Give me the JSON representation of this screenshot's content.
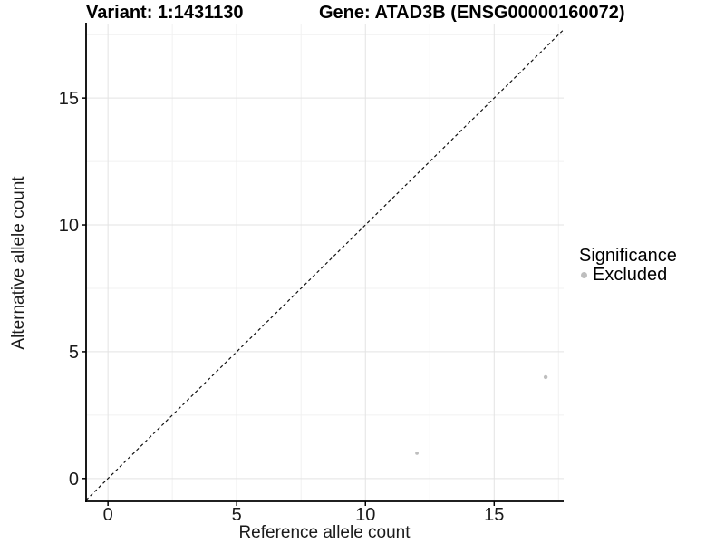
{
  "titles": {
    "variant": "Variant: 1:1431130",
    "gene": "Gene: ATAD3B (ENSG00000160072)"
  },
  "chart_data": {
    "type": "scatter",
    "title_left": "Variant: 1:1431130",
    "title_right": "Gene: ATAD3B (ENSG00000160072)",
    "xlabel": "Reference allele count",
    "ylabel": "Alternative allele count",
    "xlim": [
      -0.85,
      17.7
    ],
    "ylim": [
      -0.9,
      17.9
    ],
    "x_major_ticks": [
      0,
      5,
      10,
      15
    ],
    "y_major_ticks": [
      0,
      5,
      10,
      15
    ],
    "x_minor_ticks": [
      2.5,
      7.5,
      12.5,
      17.5
    ],
    "y_minor_ticks": [
      2.5,
      7.5,
      12.5,
      17.5
    ],
    "grid": "major+minor",
    "legend": {
      "title": "Significance",
      "position": "right",
      "entries": [
        {
          "label": "Excluded",
          "color": "#BEBEBE"
        }
      ]
    },
    "series": [
      {
        "name": "Excluded",
        "color": "#BEBEBE",
        "points": [
          {
            "x": 12,
            "y": 1,
            "r": 1.9
          },
          {
            "x": 17,
            "y": 4,
            "r": 2.2
          }
        ]
      }
    ],
    "reference_line": {
      "type": "identity",
      "style": "dashed",
      "color": "#111111"
    }
  },
  "colors": {
    "background": "#FFFFFF",
    "axis": "#000000",
    "text": "#1A1A1A",
    "grid_major": "#E3E3E3",
    "grid_minor": "#F1F1F1",
    "point": "#BEBEBE"
  }
}
